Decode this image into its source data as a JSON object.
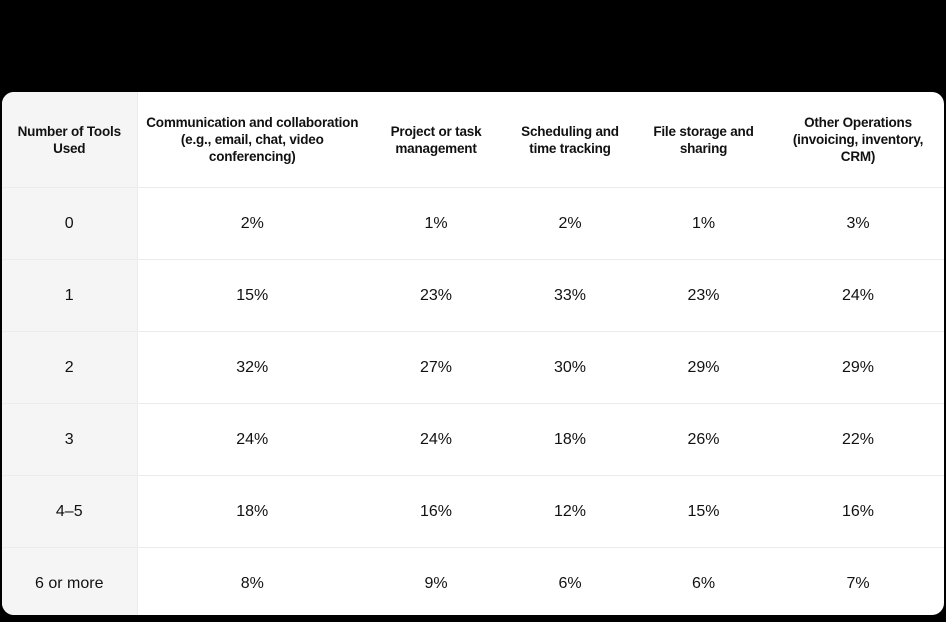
{
  "table": {
    "headers": [
      "Number of Tools Used",
      "Communication and collaboration (e.g., email, chat, video conferencing)",
      "Project or task management",
      "Scheduling and time tracking",
      "File storage and sharing",
      "Other Operations (invoicing, inventory, CRM)"
    ],
    "rows": [
      [
        "0",
        "2%",
        "1%",
        "2%",
        "1%",
        "3%"
      ],
      [
        "1",
        "15%",
        "23%",
        "33%",
        "23%",
        "24%"
      ],
      [
        "2",
        "32%",
        "27%",
        "30%",
        "29%",
        "29%"
      ],
      [
        "3",
        "24%",
        "24%",
        "18%",
        "26%",
        "22%"
      ],
      [
        "4–5",
        "18%",
        "16%",
        "12%",
        "15%",
        "16%"
      ],
      [
        "6 or more",
        "8%",
        "9%",
        "6%",
        "6%",
        "7%"
      ]
    ]
  },
  "chart_data": {
    "type": "table",
    "title": "",
    "columns": [
      "Number of Tools Used",
      "Communication and collaboration (e.g., email, chat, video conferencing)",
      "Project or task management",
      "Scheduling and time tracking",
      "File storage and sharing",
      "Other Operations (invoicing, inventory, CRM)"
    ],
    "categories": [
      "0",
      "1",
      "2",
      "3",
      "4–5",
      "6 or more"
    ],
    "series": [
      {
        "name": "Communication and collaboration (e.g., email, chat, video conferencing)",
        "values": [
          2,
          15,
          32,
          24,
          18,
          8
        ]
      },
      {
        "name": "Project or task management",
        "values": [
          1,
          23,
          27,
          24,
          16,
          9
        ]
      },
      {
        "name": "Scheduling and time tracking",
        "values": [
          2,
          33,
          30,
          18,
          12,
          6
        ]
      },
      {
        "name": "File storage and sharing",
        "values": [
          1,
          23,
          29,
          26,
          15,
          6
        ]
      },
      {
        "name": "Other Operations (invoicing, inventory, CRM)",
        "values": [
          3,
          24,
          29,
          22,
          16,
          7
        ]
      }
    ],
    "unit": "%"
  }
}
